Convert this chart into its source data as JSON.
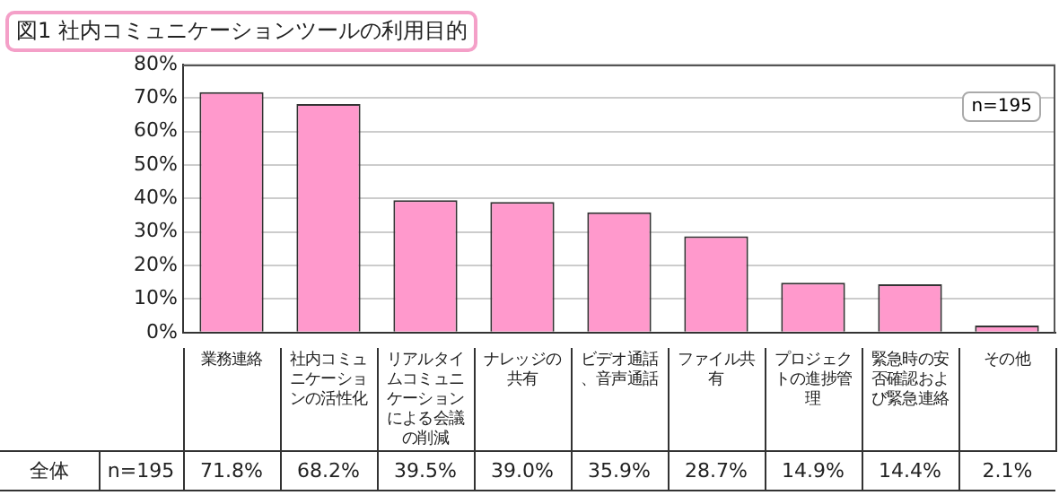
{
  "chart_data": {
    "type": "bar",
    "title": "図1 社内コミュニケーションツールの利用目的",
    "categories": [
      "業務連絡",
      "社内コミュニケーションの活性化",
      "リアルタイムコミュニケーションによる会議の削減",
      "ナレッジの共有",
      "ビデオ通話、音声通話",
      "ファイル共有",
      "プロジェクトの進捗管理",
      "緊急時の安否確認および緊急連絡",
      "その他"
    ],
    "values": [
      71.8,
      68.2,
      39.5,
      39.0,
      35.9,
      28.7,
      14.9,
      14.4,
      2.1
    ],
    "value_labels": [
      "71.8%",
      "68.2%",
      "39.5%",
      "39.0%",
      "35.9%",
      "28.7%",
      "14.9%",
      "14.4%",
      "2.1%"
    ],
    "color": "#ff99cc",
    "ylim": [
      0,
      80
    ],
    "yticks": [
      {
        "value": 0,
        "label": "0%"
      },
      {
        "value": 10,
        "label": "10%"
      },
      {
        "value": 20,
        "label": "20%"
      },
      {
        "value": 30,
        "label": "30%"
      },
      {
        "value": 40,
        "label": "40%"
      },
      {
        "value": 50,
        "label": "50%"
      },
      {
        "value": 60,
        "label": "60%"
      },
      {
        "value": 70,
        "label": "70%"
      },
      {
        "value": 80,
        "label": "80%"
      }
    ],
    "grid": "y",
    "annotations": [
      "n=195",
      "全体",
      "n=195"
    ]
  }
}
